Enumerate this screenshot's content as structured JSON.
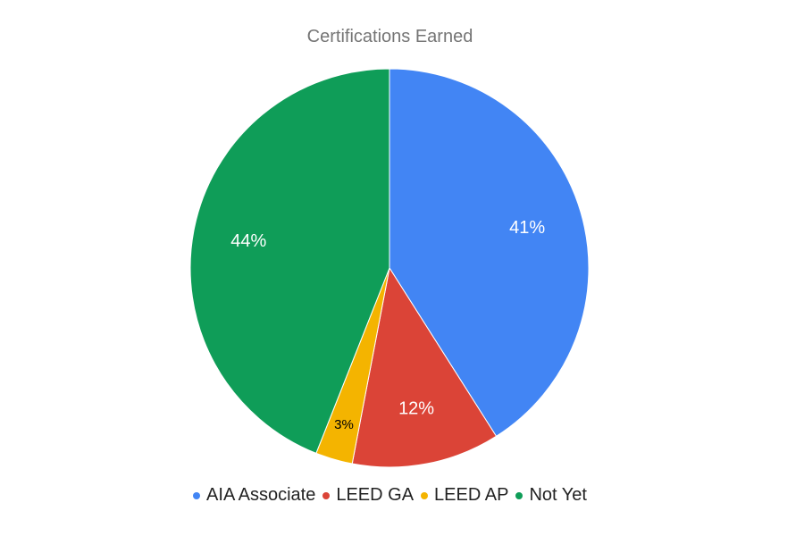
{
  "chart_data": {
    "type": "pie",
    "title": "Certifications Earned",
    "slices": [
      {
        "label": "AIA Associate",
        "value": 41,
        "display": "41%",
        "color": "#4285F4",
        "label_color": "#ffffff"
      },
      {
        "label": "LEED GA",
        "value": 12,
        "display": "12%",
        "color": "#DB4437",
        "label_color": "#ffffff"
      },
      {
        "label": "LEED AP",
        "value": 3,
        "display": "3%",
        "color": "#F4B400",
        "label_color": "#000000"
      },
      {
        "label": "Not Yet",
        "value": 44,
        "display": "44%",
        "color": "#0F9D58",
        "label_color": "#ffffff"
      }
    ],
    "legend_position": "bottom",
    "start_angle": "12 o'clock",
    "direction": "clockwise"
  }
}
